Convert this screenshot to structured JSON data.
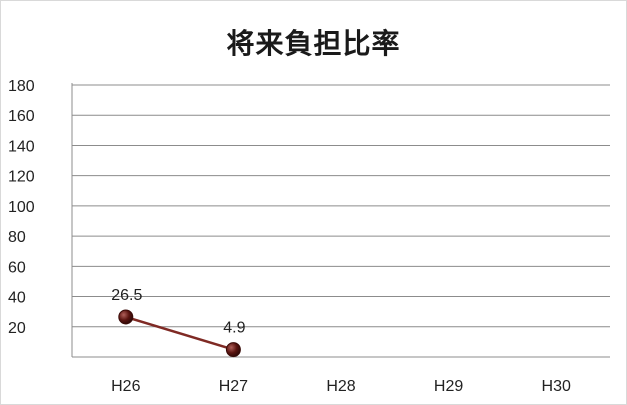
{
  "chart_data": {
    "type": "line",
    "title": "将来負担比率",
    "xlabel": "",
    "ylabel": "",
    "categories": [
      "H26",
      "H27",
      "H28",
      "H29",
      "H30"
    ],
    "series": [
      {
        "values": [
          26.5,
          4.9,
          null,
          null,
          null
        ]
      }
    ],
    "data_labels": [
      "26.5",
      "4.9"
    ],
    "ylim": [
      0,
      180
    ],
    "yticks": [
      20,
      40,
      60,
      80,
      100,
      120,
      140,
      160,
      180
    ],
    "grid": true,
    "legend": "none",
    "line_color": "#7f2a24",
    "marker_color": "#5a1410"
  }
}
